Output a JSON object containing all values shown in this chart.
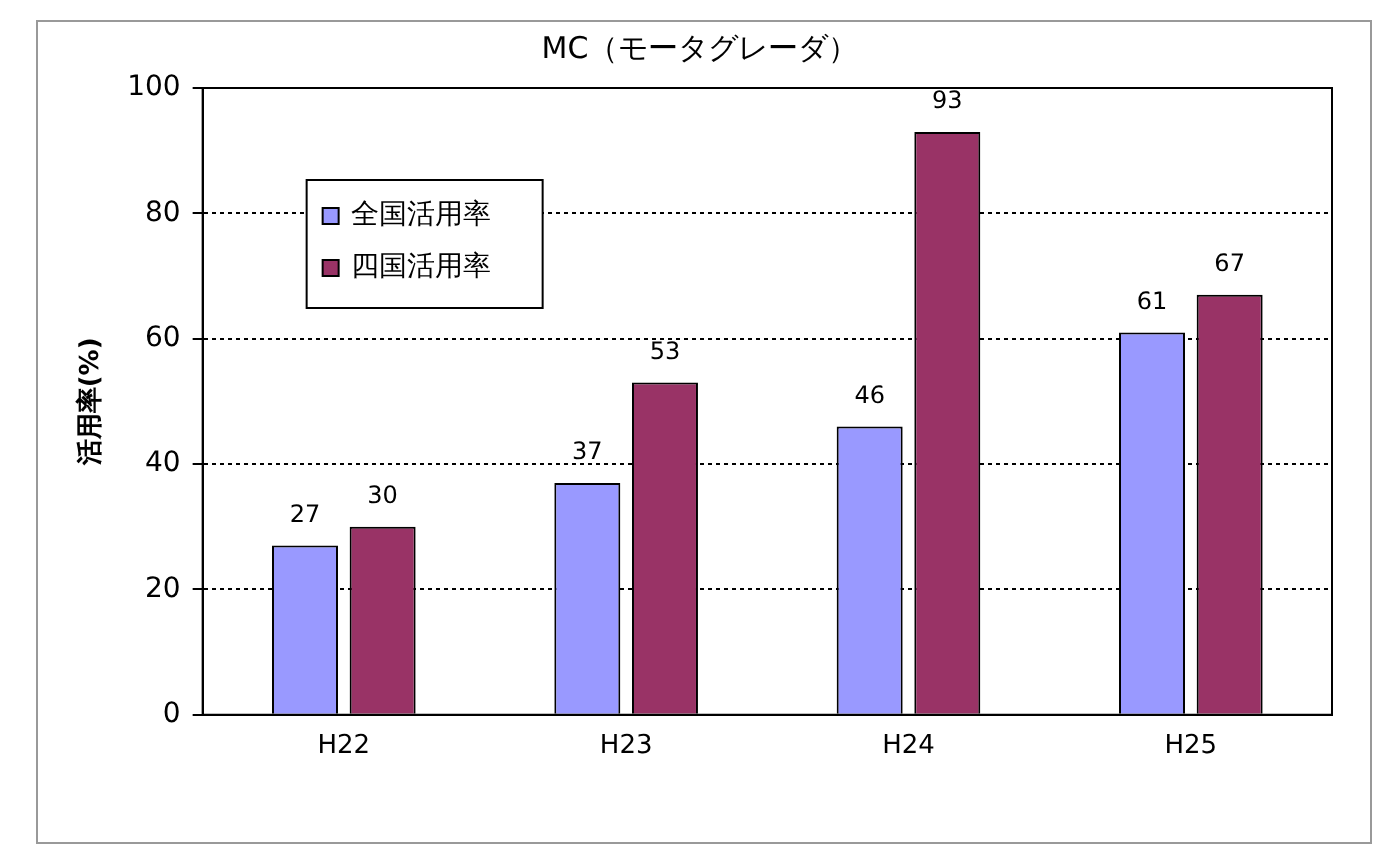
{
  "chart_data": {
    "type": "bar",
    "title": "MC（モータグレーダ）",
    "ylabel": "活用率(%)",
    "categories": [
      "H22",
      "H23",
      "H24",
      "H25"
    ],
    "series": [
      {
        "name": "全国活用率",
        "color": "#9999ff",
        "values": [
          27,
          37,
          46,
          61
        ]
      },
      {
        "name": "四国活用率",
        "color": "#993366",
        "values": [
          30,
          53,
          93,
          67
        ]
      }
    ],
    "ylim": [
      0,
      100
    ],
    "yticks": [
      0,
      20,
      40,
      60,
      80,
      100
    ],
    "grid": "y",
    "legend": "top left",
    "data_labels": true
  }
}
